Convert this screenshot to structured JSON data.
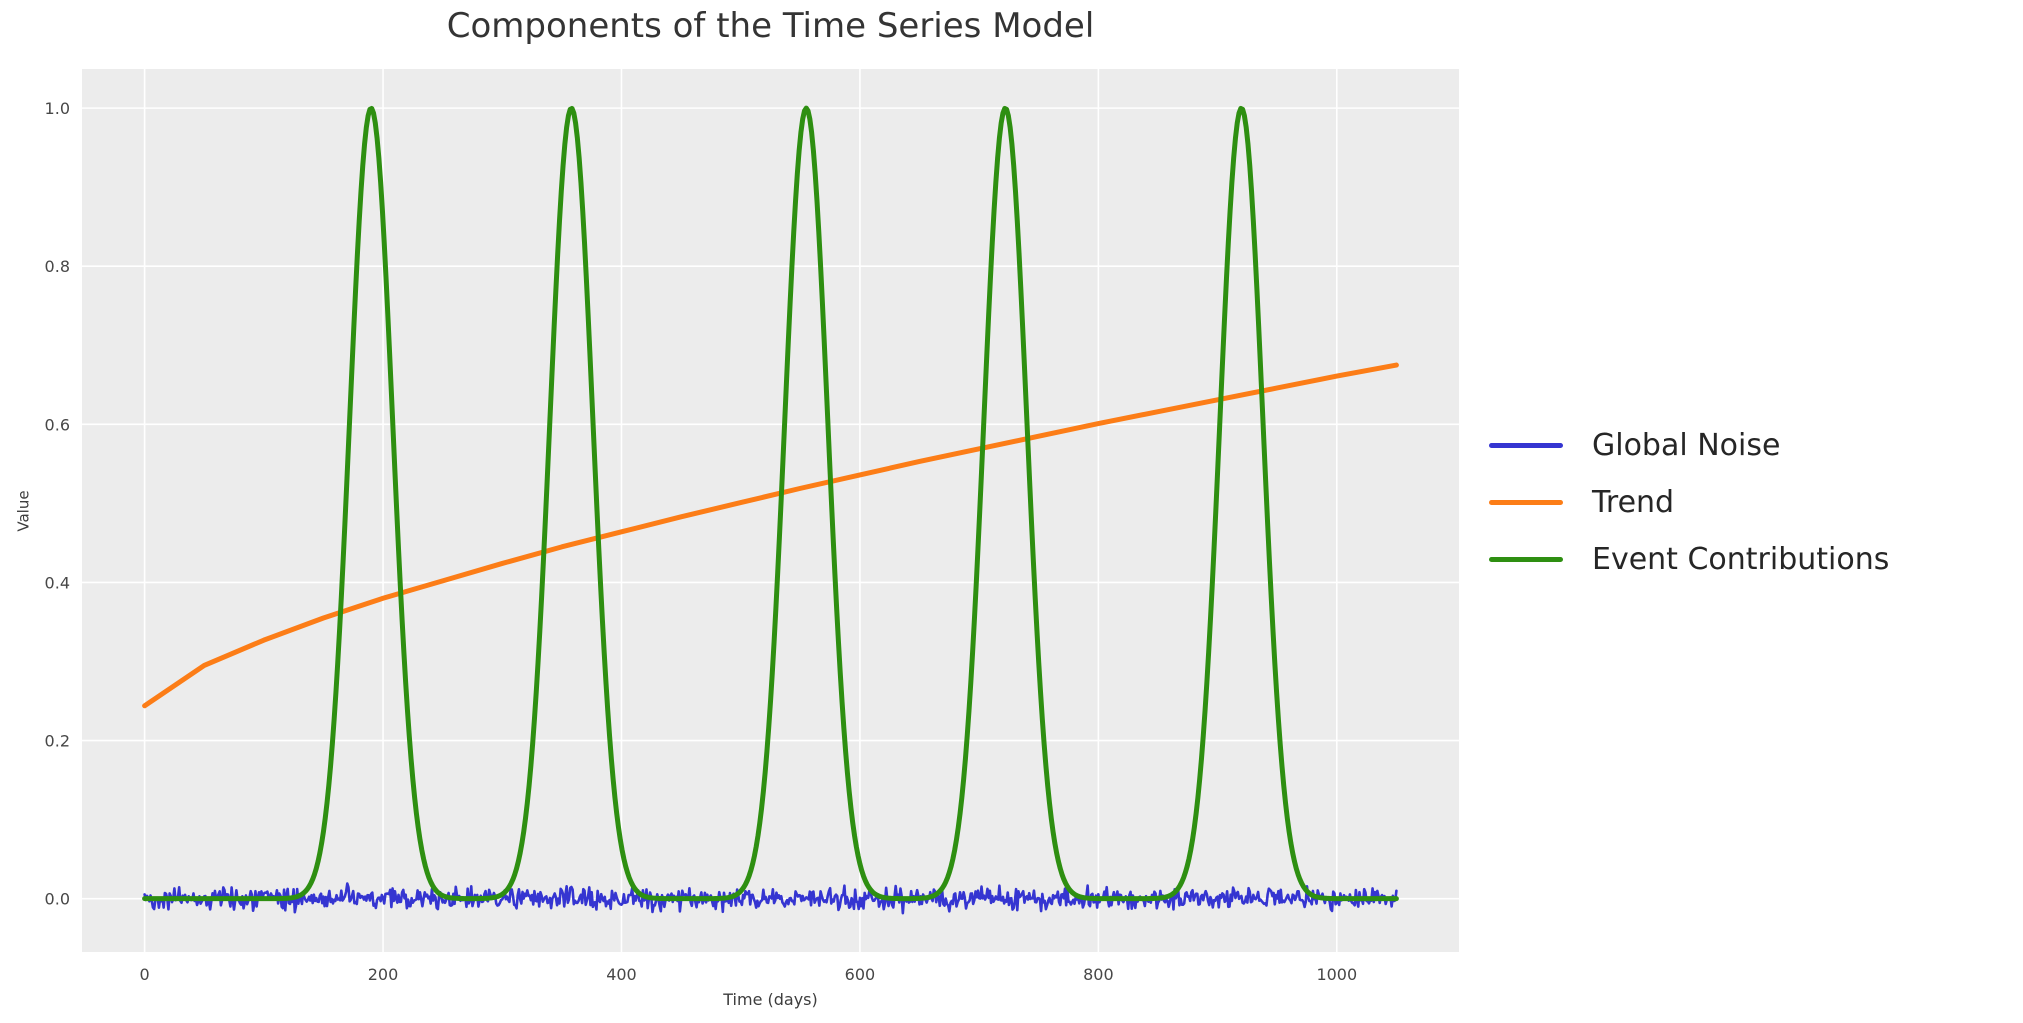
{
  "chart_data": {
    "type": "line",
    "title": "Components of the Time Series Model",
    "xlabel": "Time (days)",
    "ylabel": "Value",
    "x_ticks": [
      0,
      200,
      400,
      600,
      800,
      1000
    ],
    "y_ticks": [
      0.0,
      0.2,
      0.4,
      0.6,
      0.8,
      1.0
    ],
    "xlim": [
      -52.5,
      1102.5
    ],
    "ylim": [
      -0.0675,
      1.0495
    ],
    "x_data_range": [
      0,
      1050
    ],
    "grid": true,
    "plot_background": "#ececec",
    "grid_color": "#ffffff",
    "tick_color": "#474747",
    "legend_position": "right-outside",
    "series": [
      {
        "name": "Global Noise",
        "color": "#3535d1",
        "kind": "noise",
        "mean": 0.0,
        "max_amplitude": 0.02,
        "typical_band": 0.01,
        "points_n": 1051,
        "line_width": 2.6
      },
      {
        "name": "Trend",
        "color": "#fc7d17",
        "kind": "points",
        "x": [
          0,
          50,
          100,
          150,
          200,
          250,
          300,
          350,
          400,
          450,
          500,
          550,
          600,
          650,
          700,
          750,
          800,
          850,
          900,
          950,
          1000,
          1050
        ],
        "y": [
          0.244,
          0.295,
          0.327,
          0.355,
          0.38,
          0.402,
          0.424,
          0.445,
          0.464,
          0.483,
          0.501,
          0.519,
          0.536,
          0.553,
          0.569,
          0.585,
          0.601,
          0.616,
          0.631,
          0.646,
          0.661,
          0.675
        ],
        "line_width": 5
      },
      {
        "name": "Event Contributions",
        "color": "#2e8f11",
        "kind": "gaussian_peaks",
        "peak_centers": [
          190,
          358,
          555,
          722,
          920
        ],
        "peak_height": 1.0,
        "peak_sigma": 18,
        "baseline": 0.0,
        "line_width": 5
      }
    ]
  }
}
